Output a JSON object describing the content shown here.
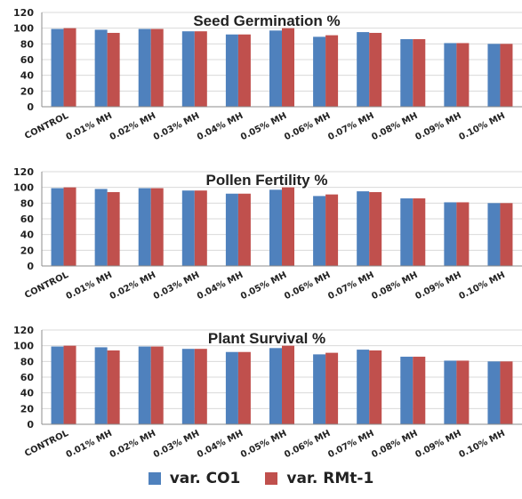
{
  "chart_data": [
    {
      "type": "bar",
      "title": "Seed Germination %",
      "categories": [
        "CONTROL",
        "0.01% MH",
        "0.02% MH",
        "0.03% MH",
        "0.04% MH",
        "0.05% MH",
        "0.06% MH",
        "0.07% MH",
        "0.08% MH",
        "0.09% MH",
        "0.10% MH"
      ],
      "series": [
        {
          "name": "var. CO1",
          "values": [
            99,
            98,
            99,
            96,
            92,
            97,
            89,
            95,
            86,
            81,
            80
          ]
        },
        {
          "name": "var. RMt-1",
          "values": [
            100,
            94,
            99,
            96,
            92,
            100,
            91,
            94,
            86,
            81,
            80
          ]
        }
      ],
      "ylim": [
        0,
        120
      ],
      "yticks": [
        0,
        20,
        40,
        60,
        80,
        100,
        120
      ],
      "grid": true
    },
    {
      "type": "bar",
      "title": "Pollen Fertility %",
      "categories": [
        "CONTROL",
        "0.01% MH",
        "0.02% MH",
        "0.03% MH",
        "0.04% MH",
        "0.05% MH",
        "0.06% MH",
        "0.07% MH",
        "0.08% MH",
        "0.09% MH",
        "0.10% MH"
      ],
      "series": [
        {
          "name": "var. CO1",
          "values": [
            99,
            98,
            99,
            96,
            92,
            97,
            89,
            95,
            86,
            81,
            80
          ]
        },
        {
          "name": "var. RMt-1",
          "values": [
            100,
            94,
            99,
            96,
            92,
            100,
            91,
            94,
            86,
            81,
            80
          ]
        }
      ],
      "ylim": [
        0,
        120
      ],
      "yticks": [
        0,
        20,
        40,
        60,
        80,
        100,
        120
      ],
      "grid": true
    },
    {
      "type": "bar",
      "title": "Plant Survival %",
      "categories": [
        "CONTROL",
        "0.01% MH",
        "0.02% MH",
        "0.03% MH",
        "0.04% MH",
        "0.05% MH",
        "0.06% MH",
        "0.07% MH",
        "0.08% MH",
        "0.09% MH",
        "0.10% MH"
      ],
      "series": [
        {
          "name": "var. CO1",
          "values": [
            99,
            98,
            99,
            96,
            92,
            97,
            89,
            95,
            86,
            81,
            80
          ]
        },
        {
          "name": "var. RMt-1",
          "values": [
            100,
            94,
            99,
            96,
            92,
            100,
            91,
            94,
            86,
            81,
            80
          ]
        }
      ],
      "ylim": [
        0,
        120
      ],
      "yticks": [
        0,
        20,
        40,
        60,
        80,
        100,
        120
      ],
      "grid": true
    }
  ],
  "legend": {
    "placement": "bottom",
    "items": [
      {
        "label": "var. CO1",
        "color": "#4F81BD"
      },
      {
        "label": "var. RMt-1",
        "color": "#C0504D"
      }
    ]
  }
}
